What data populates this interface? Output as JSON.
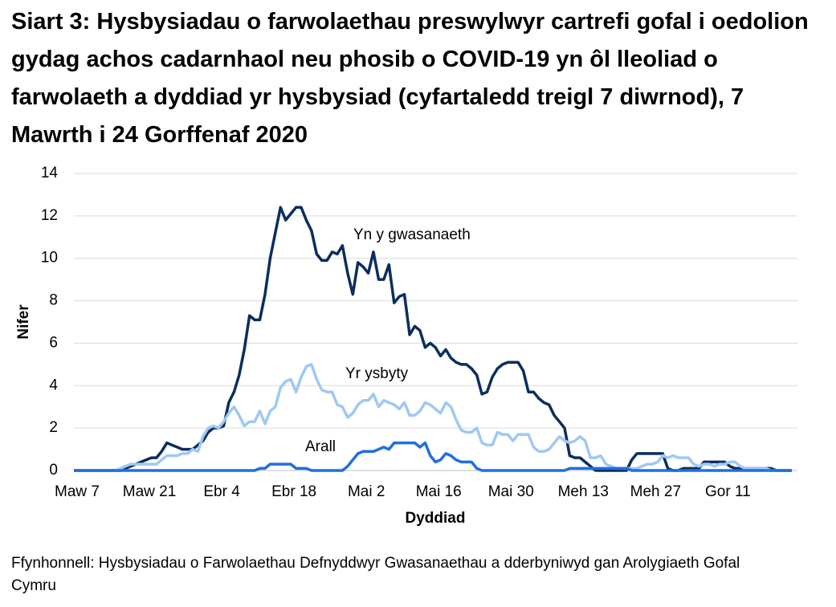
{
  "chart_data": {
    "type": "line",
    "title": "Siart 3: Hysbysiadau o farwolaethau preswylwyr cartrefi gofal i oedolion gydag achos cadarnhaol neu phosib o COVID-19 yn ôl lleoliad o farwolaeth a dyddiad yr hysbysiad (cyfartaledd treigl 7 diwrnod), 7 Mawrth i 24 Gorffenaf 2020",
    "x_label": "Dyddiad",
    "y_label": "Nifer",
    "source": "Ffynhonnell: Hysbysiadau o Farwolaethau Defnyddwyr Gwasanaethau a dderbyniwyd gan Arolygiaeth Gofal Cymru",
    "categories": [
      "Maw 7",
      null,
      null,
      null,
      null,
      null,
      null,
      null,
      null,
      null,
      null,
      null,
      null,
      null,
      "Maw 21",
      null,
      null,
      null,
      null,
      null,
      null,
      null,
      null,
      null,
      null,
      null,
      null,
      null,
      "Ebr 4",
      null,
      null,
      null,
      null,
      null,
      null,
      null,
      null,
      null,
      null,
      null,
      null,
      null,
      "Ebr 18",
      null,
      null,
      null,
      null,
      null,
      null,
      null,
      null,
      null,
      null,
      null,
      null,
      null,
      "Mai 2",
      null,
      null,
      null,
      null,
      null,
      null,
      null,
      null,
      null,
      null,
      null,
      null,
      null,
      "Mai 16",
      null,
      null,
      null,
      null,
      null,
      null,
      null,
      null,
      null,
      null,
      null,
      null,
      null,
      "Mai 30",
      null,
      null,
      null,
      null,
      null,
      null,
      null,
      null,
      null,
      null,
      null,
      null,
      null,
      "Meh 13",
      null,
      null,
      null,
      null,
      null,
      null,
      null,
      null,
      null,
      null,
      null,
      null,
      null,
      "Meh 27",
      null,
      null,
      null,
      null,
      null,
      null,
      null,
      null,
      null,
      null,
      null,
      null,
      null,
      "Gor 11",
      null,
      null,
      null,
      null,
      null,
      null,
      null,
      null,
      null,
      null,
      null,
      null,
      null
    ],
    "series": [
      {
        "name": "Yn y gwasanaeth",
        "color": "#0c2d5e",
        "values": [
          0,
          0,
          0,
          0,
          0,
          0,
          0,
          0,
          0,
          0,
          0.1,
          0.2,
          0.3,
          0.4,
          0.5,
          0.6,
          0.6,
          0.9,
          1.3,
          1.2,
          1.1,
          1.0,
          1.0,
          1.0,
          1.2,
          1.4,
          1.8,
          2.0,
          2.0,
          2.1,
          3.2,
          3.7,
          4.5,
          5.7,
          7.3,
          7.1,
          7.1,
          8.3,
          10.0,
          11.2,
          12.4,
          11.8,
          12.1,
          12.4,
          12.4,
          11.8,
          11.3,
          10.2,
          9.9,
          9.9,
          10.3,
          10.2,
          10.6,
          9.3,
          8.3,
          9.8,
          9.6,
          9.3,
          10.3,
          9.0,
          9.0,
          9.7,
          7.9,
          8.2,
          8.3,
          6.4,
          6.8,
          6.6,
          5.8,
          6.0,
          5.8,
          5.4,
          5.7,
          5.3,
          5.1,
          5.0,
          5.0,
          4.8,
          4.5,
          3.6,
          3.7,
          4.4,
          4.8,
          5.0,
          5.1,
          5.1,
          5.1,
          4.7,
          3.7,
          3.7,
          3.4,
          3.2,
          3.1,
          2.6,
          2.3,
          2.0,
          0.7,
          0.6,
          0.6,
          0.4,
          0.2,
          0,
          0,
          0,
          0,
          0,
          0,
          0,
          0.5,
          0.8,
          0.8,
          0.8,
          0.8,
          0.8,
          0.8,
          0.1,
          0,
          0,
          0.1,
          0.1,
          0.1,
          0.1,
          0.4,
          0.4,
          0.4,
          0.4,
          0.4,
          0.2,
          0.1,
          0.1,
          0.1,
          0.1,
          0.1,
          0.1,
          0.1,
          0.1,
          0,
          0,
          0,
          0
        ]
      },
      {
        "name": "Yr ysbyty",
        "color": "#9fc8f4",
        "values": [
          0,
          0,
          0,
          0,
          0,
          0,
          0,
          0,
          0,
          0.1,
          0.2,
          0.3,
          0.3,
          0.3,
          0.3,
          0.3,
          0.3,
          0.5,
          0.7,
          0.7,
          0.7,
          0.8,
          0.8,
          1.0,
          0.9,
          1.6,
          2.0,
          2.1,
          2.0,
          2.3,
          2.7,
          3.0,
          2.6,
          2.1,
          2.3,
          2.3,
          2.8,
          2.2,
          2.8,
          3.0,
          3.9,
          4.2,
          4.3,
          3.7,
          4.4,
          4.9,
          5.0,
          4.3,
          3.8,
          3.7,
          3.7,
          3.1,
          3.0,
          2.5,
          2.7,
          3.1,
          3.3,
          3.3,
          3.6,
          3.0,
          3.3,
          3.2,
          3.1,
          2.9,
          3.2,
          2.6,
          2.6,
          2.8,
          3.2,
          3.1,
          2.9,
          2.7,
          3.2,
          3.0,
          2.4,
          1.9,
          1.8,
          1.8,
          2.0,
          1.3,
          1.2,
          1.2,
          1.8,
          1.7,
          1.7,
          1.4,
          1.7,
          1.7,
          1.7,
          1.1,
          0.9,
          0.9,
          1.0,
          1.3,
          1.6,
          1.4,
          1.3,
          1.4,
          1.6,
          1.4,
          0.6,
          0.6,
          0.7,
          0.3,
          0.2,
          0.1,
          0.1,
          0.1,
          0.1,
          0.1,
          0.2,
          0.3,
          0.3,
          0.4,
          0.7,
          0.6,
          0.7,
          0.6,
          0.6,
          0.6,
          0.3,
          0.2,
          0.3,
          0.3,
          0.2,
          0.3,
          0.3,
          0.4,
          0.4,
          0.2,
          0.1,
          0.1,
          0.1,
          0.1,
          0.1,
          0,
          0,
          0,
          0,
          0
        ]
      },
      {
        "name": "Arall",
        "color": "#1f6fe0",
        "values": [
          0,
          0,
          0,
          0,
          0,
          0,
          0,
          0,
          0,
          0,
          0,
          0,
          0,
          0,
          0,
          0,
          0,
          0,
          0,
          0,
          0,
          0,
          0,
          0,
          0,
          0,
          0,
          0,
          0,
          0,
          0,
          0,
          0,
          0,
          0,
          0,
          0.1,
          0.1,
          0.3,
          0.3,
          0.3,
          0.3,
          0.3,
          0.1,
          0.1,
          0.1,
          0,
          0,
          0,
          0,
          0,
          0,
          0,
          0.2,
          0.5,
          0.8,
          0.9,
          0.9,
          0.9,
          1.0,
          1.1,
          1.0,
          1.3,
          1.3,
          1.3,
          1.3,
          1.3,
          1.1,
          1.3,
          0.7,
          0.4,
          0.5,
          0.8,
          0.7,
          0.5,
          0.4,
          0.4,
          0.4,
          0.1,
          0,
          0,
          0,
          0,
          0,
          0,
          0,
          0,
          0,
          0,
          0,
          0,
          0,
          0,
          0,
          0,
          0,
          0.1,
          0.1,
          0.1,
          0.1,
          0.1,
          0.1,
          0.1,
          0.1,
          0.1,
          0.1,
          0.1,
          0.1,
          0,
          0,
          0,
          0,
          0,
          0,
          0,
          0,
          0,
          0,
          0,
          0,
          0,
          0,
          0,
          0,
          0,
          0,
          0,
          0,
          0,
          0,
          0,
          0,
          0,
          0,
          0,
          0,
          0,
          0,
          0,
          0
        ]
      }
    ],
    "ylim": [
      0,
      14
    ],
    "yticks": [
      0,
      2,
      4,
      6,
      8,
      10,
      12,
      14
    ],
    "grid": true
  }
}
